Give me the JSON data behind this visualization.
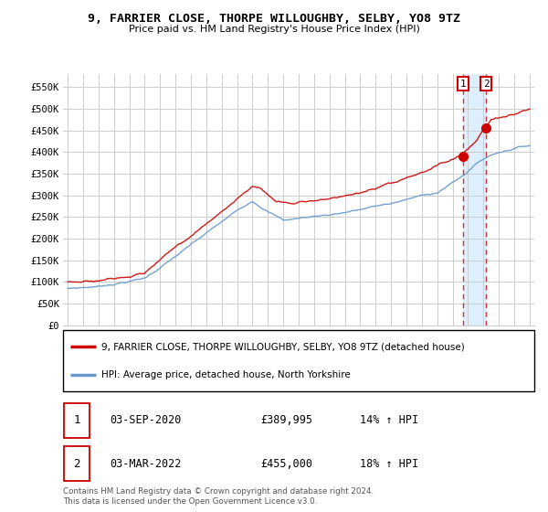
{
  "title": "9, FARRIER CLOSE, THORPE WILLOUGHBY, SELBY, YO8 9TZ",
  "subtitle": "Price paid vs. HM Land Registry's House Price Index (HPI)",
  "ylabel_ticks": [
    "£0",
    "£50K",
    "£100K",
    "£150K",
    "£200K",
    "£250K",
    "£300K",
    "£350K",
    "£400K",
    "£450K",
    "£500K",
    "£550K"
  ],
  "ytick_values": [
    0,
    50000,
    100000,
    150000,
    200000,
    250000,
    300000,
    350000,
    400000,
    450000,
    500000,
    550000
  ],
  "ylim": [
    0,
    580000
  ],
  "legend_house": "9, FARRIER CLOSE, THORPE WILLOUGHBY, SELBY, YO8 9TZ (detached house)",
  "legend_hpi": "HPI: Average price, detached house, North Yorkshire",
  "transaction1_date": "03-SEP-2020",
  "transaction1_price": "£389,995",
  "transaction1_hpi": "14% ↑ HPI",
  "transaction2_date": "03-MAR-2022",
  "transaction2_price": "£455,000",
  "transaction2_hpi": "18% ↑ HPI",
  "footer": "Contains HM Land Registry data © Crown copyright and database right 2024.\nThis data is licensed under the Open Government Licence v3.0.",
  "house_color": "#cc0000",
  "hpi_color": "#6699cc",
  "shade_color": "#ddeeff",
  "marker_box_color": "#cc0000",
  "background_color": "#ffffff",
  "grid_color": "#cccccc"
}
